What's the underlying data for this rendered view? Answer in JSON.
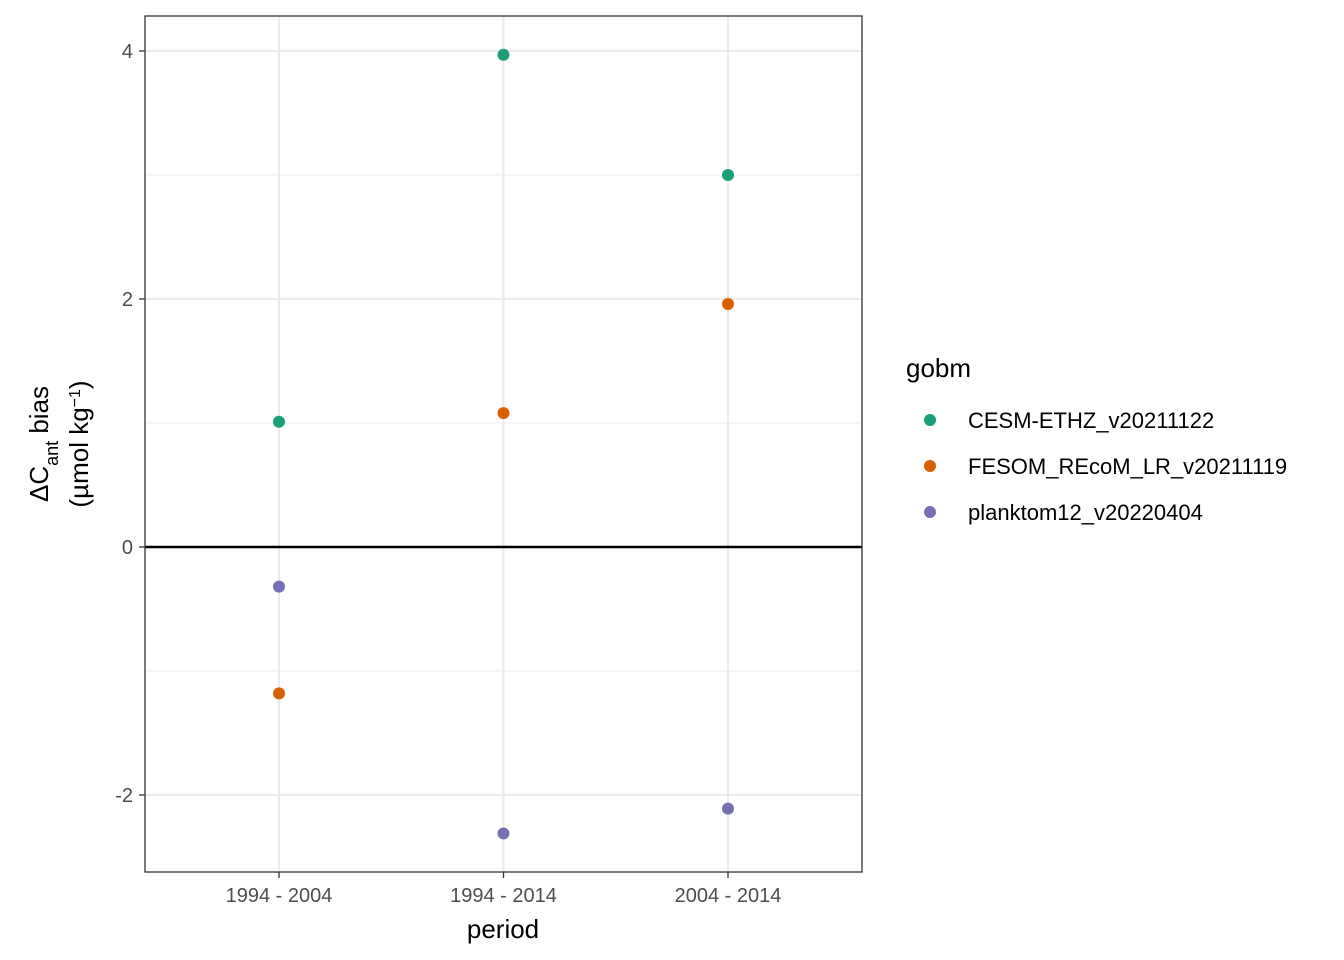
{
  "chart_data": {
    "type": "scatter",
    "xlabel": "period",
    "ylabel": {
      "line1_prefix": "ΔC",
      "line1_subscript": "ant",
      "line1_suffix": " bias",
      "line2_prefix": "(µmol kg",
      "line2_superscript": "−1",
      "line2_suffix": ")"
    },
    "categories": [
      "1994 - 2004",
      "1994 - 2014",
      "2004 - 2014"
    ],
    "ylim": [
      -2.6,
      4.3
    ],
    "yticks": [
      -2,
      0,
      2,
      4
    ],
    "yminor": [
      -1,
      1,
      3
    ],
    "hline": 0,
    "grid": true,
    "legend": {
      "title": "gobm",
      "position": "right"
    },
    "series": [
      {
        "name": "CESM-ETHZ_v20211122",
        "color": "#1b9e77",
        "values": [
          1.01,
          3.97,
          3.0
        ]
      },
      {
        "name": "FESOM_REcoM_LR_v20211119",
        "color": "#d95f02",
        "values": [
          -1.18,
          1.08,
          1.96
        ]
      },
      {
        "name": "planktom12_v20220404",
        "color": "#7570b3",
        "values": [
          -0.32,
          -2.31,
          -2.11
        ]
      }
    ]
  }
}
